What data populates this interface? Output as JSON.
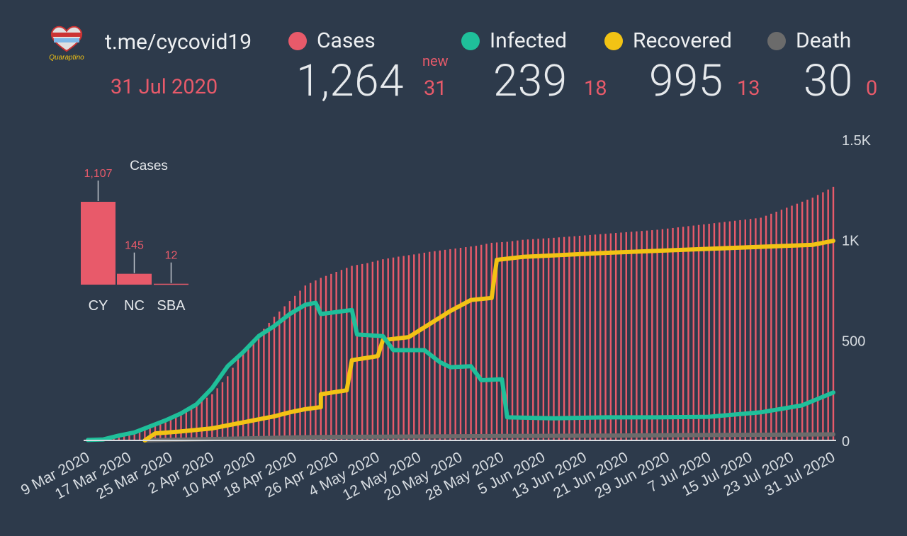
{
  "header": {
    "site": "t.me/cycovid19",
    "date": "31 Jul 2020",
    "logo_text": "Quaraptino",
    "new_label": "new"
  },
  "stats": [
    {
      "name": "Cases",
      "total": "1,264",
      "new": "31",
      "color": "#e85a6a"
    },
    {
      "name": "Infected",
      "total": "239",
      "new": "18",
      "color": "#1fbf9a"
    },
    {
      "name": "Recovered",
      "total": "995",
      "new": "13",
      "color": "#f2c314"
    },
    {
      "name": "Death",
      "total": "30",
      "new": "0",
      "color": "#6b6b6b"
    }
  ],
  "chart_data": [
    {
      "type": "bar+line",
      "title": "",
      "x_start": "2020-03-09",
      "x_end": "2020-07-31",
      "x_tick_labels": [
        "9 Mar 2020",
        "17 Mar 2020",
        "25 Mar 2020",
        "2 Apr 2020",
        "10 Apr 2020",
        "18 Apr 2020",
        "26 Apr 2020",
        "4 May 2020",
        "12 May 2020",
        "20 May 2020",
        "28 May 2020",
        "5 Jun 2020",
        "13 Jun 2020",
        "21 Jun 2020",
        "29 Jun 2020",
        "7 Jul 2020",
        "15 Jul 2020",
        "23 Jul 2020",
        "31 Jul 2020"
      ],
      "y_ticks": [
        "0",
        "500",
        "1K",
        "1.5K"
      ],
      "y_tick_values": [
        0,
        500,
        1000,
        1500
      ],
      "ylim": [
        0,
        1500
      ],
      "series": [
        {
          "name": "Cases",
          "style": "bar",
          "color": "#e85a6a",
          "points": [
            [
              0,
              2
            ],
            [
              3,
              6
            ],
            [
              6,
              14
            ],
            [
              9,
              33
            ],
            [
              12,
              62
            ],
            [
              15,
              95
            ],
            [
              18,
              124
            ],
            [
              21,
              179
            ],
            [
              24,
              230
            ],
            [
              27,
              320
            ],
            [
              30,
              446
            ],
            [
              33,
              526
            ],
            [
              36,
              616
            ],
            [
              39,
              695
            ],
            [
              42,
              772
            ],
            [
              45,
              810
            ],
            [
              48,
              840
            ],
            [
              51,
              870
            ],
            [
              54,
              884
            ],
            [
              57,
              903
            ],
            [
              60,
              916
            ],
            [
              63,
              927
            ],
            [
              66,
              940
            ],
            [
              69,
              950
            ],
            [
              72,
              960
            ],
            [
              75,
              970
            ],
            [
              78,
              985
            ],
            [
              81,
              990
            ],
            [
              84,
              1000
            ],
            [
              90,
              1010
            ],
            [
              100,
              1030
            ],
            [
              110,
              1050
            ],
            [
              120,
              1080
            ],
            [
              130,
              1110
            ],
            [
              135,
              1160
            ],
            [
              140,
              1210
            ],
            [
              144,
              1264
            ]
          ]
        },
        {
          "name": "Infected",
          "style": "line",
          "color": "#1fbf9a",
          "points": [
            [
              0,
              2
            ],
            [
              3,
              5
            ],
            [
              6,
              24
            ],
            [
              9,
              40
            ],
            [
              12,
              70
            ],
            [
              15,
              100
            ],
            [
              18,
              135
            ],
            [
              21,
              180
            ],
            [
              24,
              260
            ],
            [
              27,
              370
            ],
            [
              30,
              440
            ],
            [
              33,
              520
            ],
            [
              36,
              570
            ],
            [
              39,
              630
            ],
            [
              42,
              676
            ],
            [
              44,
              686
            ],
            [
              45,
              630
            ],
            [
              48,
              640
            ],
            [
              51,
              650
            ],
            [
              52,
              528
            ],
            [
              57,
              520
            ],
            [
              59,
              450
            ],
            [
              65,
              450
            ],
            [
              68,
              390
            ],
            [
              70,
              365
            ],
            [
              74,
              370
            ],
            [
              76,
              300
            ],
            [
              80,
              305
            ],
            [
              81,
              115
            ],
            [
              90,
              110
            ],
            [
              100,
              115
            ],
            [
              110,
              115
            ],
            [
              120,
              118
            ],
            [
              130,
              140
            ],
            [
              138,
              175
            ],
            [
              144,
              239
            ]
          ]
        },
        {
          "name": "Recovered",
          "style": "line",
          "color": "#f2c314",
          "points": [
            [
              11,
              0
            ],
            [
              13,
              35
            ],
            [
              18,
              45
            ],
            [
              24,
              60
            ],
            [
              30,
              90
            ],
            [
              36,
              120
            ],
            [
              39,
              140
            ],
            [
              42,
              156
            ],
            [
              45,
              166
            ],
            [
              45,
              230
            ],
            [
              50,
              250
            ],
            [
              51,
              400
            ],
            [
              56,
              420
            ],
            [
              57,
              500
            ],
            [
              62,
              515
            ],
            [
              66,
              580
            ],
            [
              70,
              645
            ],
            [
              74,
              700
            ],
            [
              78,
              710
            ],
            [
              79,
              900
            ],
            [
              84,
              915
            ],
            [
              100,
              935
            ],
            [
              120,
              955
            ],
            [
              140,
              975
            ],
            [
              144,
              995
            ]
          ]
        },
        {
          "name": "Death",
          "style": "line",
          "color": "#6b6b6b",
          "points": [
            [
              11,
              0
            ],
            [
              20,
              5
            ],
            [
              30,
              10
            ],
            [
              40,
              15
            ],
            [
              50,
              18
            ],
            [
              60,
              19
            ],
            [
              70,
              20
            ],
            [
              80,
              22
            ],
            [
              100,
              24
            ],
            [
              120,
              27
            ],
            [
              144,
              30
            ]
          ]
        }
      ]
    },
    {
      "type": "bar",
      "title": "Cases",
      "categories": [
        "CY",
        "NC",
        "SBA"
      ],
      "values": [
        1107,
        145,
        12
      ],
      "value_labels": [
        "1,107",
        "145",
        "12"
      ],
      "ylim": [
        0,
        1107
      ],
      "color": "#e85a6a"
    }
  ]
}
